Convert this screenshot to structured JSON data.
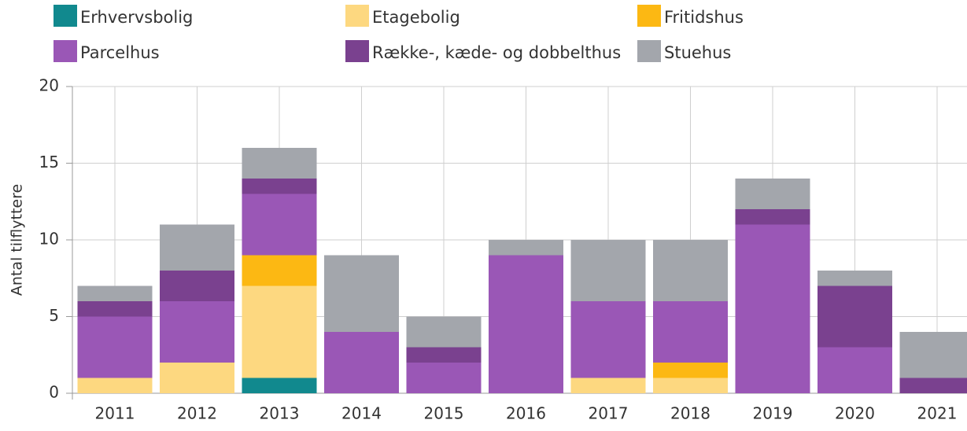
{
  "chart_data": {
    "type": "stacked_bar",
    "y_label": "Antal tilflyttere",
    "categories": [
      "2011",
      "2012",
      "2013",
      "2014",
      "2015",
      "2016",
      "2017",
      "2018",
      "2019",
      "2020",
      "2021"
    ],
    "series": [
      {
        "name": "Erhvervsbolig",
        "color": "#11898e",
        "values": [
          0,
          0,
          1,
          0,
          0,
          0,
          0,
          0,
          0,
          0,
          0
        ]
      },
      {
        "name": "Etagebolig",
        "color": "#fdd880",
        "values": [
          1,
          2,
          6,
          0,
          0,
          0,
          1,
          1,
          0,
          0,
          0
        ]
      },
      {
        "name": "Fritidshus",
        "color": "#fcb813",
        "values": [
          0,
          0,
          2,
          0,
          0,
          0,
          0,
          1,
          0,
          0,
          0
        ]
      },
      {
        "name": "Parcelhus",
        "color": "#9a57b6",
        "values": [
          4,
          4,
          4,
          4,
          2,
          9,
          5,
          4,
          11,
          3,
          0
        ]
      },
      {
        "name": "Række-, kæde- og dobbelthus",
        "color": "#7a418f",
        "values": [
          1,
          2,
          1,
          0,
          1,
          0,
          0,
          0,
          1,
          4,
          1
        ]
      },
      {
        "name": "Stuehus",
        "color": "#a3a6ac",
        "values": [
          1,
          3,
          2,
          5,
          2,
          1,
          4,
          4,
          2,
          1,
          3
        ]
      }
    ],
    "ylim": [
      0,
      20
    ],
    "yticks": [
      0,
      5,
      10,
      15,
      20
    ],
    "grid": true
  }
}
